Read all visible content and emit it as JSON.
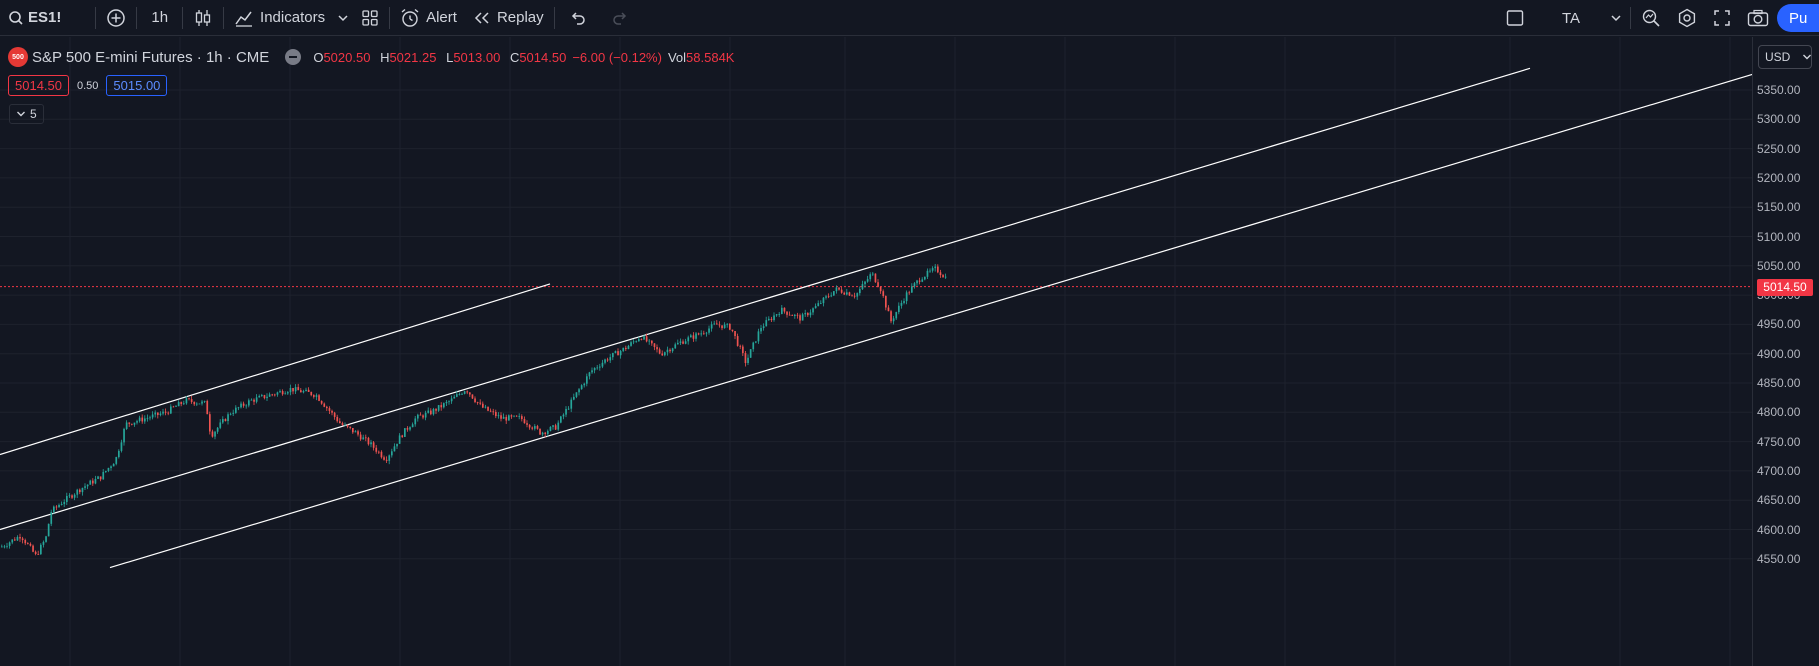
{
  "toolbar": {
    "symbol": "ES1!",
    "interval": "1h",
    "indicators_label": "Indicators",
    "alert_label": "Alert",
    "replay_label": "Replay",
    "ta_label": "TA",
    "publish_label": "Pu"
  },
  "legend": {
    "exchange_logo_text": "500",
    "title": "S&P 500 E-mini Futures · 1h · CME",
    "open_label": "O",
    "open": "5020.50",
    "high_label": "H",
    "high": "5021.25",
    "low_label": "L",
    "low": "5013.00",
    "close_label": "C",
    "close": "5014.50",
    "change": "−6.00 (−0.12%)",
    "volume_label": "Vol",
    "volume": "58.584K"
  },
  "quote": {
    "sell": "5014.50",
    "spread": "0.50",
    "buy": "5015.00"
  },
  "indicators_collapsed_count": "5",
  "axis": {
    "currency": "USD",
    "last_price": "5014.50",
    "labels": [
      "5350.00",
      "5300.00",
      "5250.00",
      "5200.00",
      "5150.00",
      "5100.00",
      "5050.00",
      "5000.00",
      "4950.00",
      "4900.00",
      "4850.00",
      "4800.00",
      "4750.00",
      "4700.00",
      "4650.00",
      "4600.00",
      "4550.00"
    ]
  },
  "colors": {
    "background": "#131722",
    "grid": "#1e222d",
    "up": "#26a69a",
    "down": "#ef5350",
    "accent": "#2962ff",
    "last_price": "#f23645",
    "channel": "#ffffff"
  },
  "chart_data": {
    "type": "candlestick",
    "symbol": "ES1!",
    "interval": "1h",
    "ylim": [
      4530,
      5390
    ],
    "last_price": 5014.5,
    "path": [
      [
        0,
        4570
      ],
      [
        20,
        4590
      ],
      [
        35,
        4555
      ],
      [
        45,
        4585
      ],
      [
        50,
        4630
      ],
      [
        60,
        4645
      ],
      [
        80,
        4670
      ],
      [
        100,
        4690
      ],
      [
        115,
        4720
      ],
      [
        125,
        4780
      ],
      [
        145,
        4790
      ],
      [
        165,
        4800
      ],
      [
        185,
        4820
      ],
      [
        205,
        4815
      ],
      [
        210,
        4760
      ],
      [
        230,
        4800
      ],
      [
        250,
        4820
      ],
      [
        270,
        4830
      ],
      [
        290,
        4840
      ],
      [
        315,
        4830
      ],
      [
        340,
        4780
      ],
      [
        355,
        4765
      ],
      [
        370,
        4745
      ],
      [
        385,
        4720
      ],
      [
        400,
        4760
      ],
      [
        415,
        4790
      ],
      [
        430,
        4800
      ],
      [
        450,
        4820
      ],
      [
        465,
        4840
      ],
      [
        480,
        4810
      ],
      [
        500,
        4790
      ],
      [
        520,
        4790
      ],
      [
        540,
        4765
      ],
      [
        555,
        4775
      ],
      [
        575,
        4830
      ],
      [
        590,
        4870
      ],
      [
        605,
        4890
      ],
      [
        625,
        4910
      ],
      [
        640,
        4930
      ],
      [
        660,
        4900
      ],
      [
        680,
        4920
      ],
      [
        700,
        4935
      ],
      [
        715,
        4950
      ],
      [
        730,
        4945
      ],
      [
        745,
        4885
      ],
      [
        760,
        4945
      ],
      [
        780,
        4975
      ],
      [
        800,
        4960
      ],
      [
        815,
        4980
      ],
      [
        835,
        5010
      ],
      [
        855,
        5000
      ],
      [
        870,
        5035
      ],
      [
        860,
        5060
      ],
      [
        870,
        5040
      ],
      [
        880,
        5010
      ],
      [
        890,
        4955
      ],
      [
        905,
        5000
      ],
      [
        920,
        5030
      ],
      [
        935,
        5045
      ],
      [
        945,
        5030
      ]
    ],
    "channel_lines": [
      {
        "p1": [
          0,
          4728
        ],
        "p2": [
          550,
          5019
        ]
      },
      {
        "p1": [
          0,
          4600
        ],
        "p2": [
          1530,
          5387
        ]
      },
      {
        "p1": [
          110,
          4535
        ],
        "p2": [
          1755,
          5378
        ]
      }
    ]
  }
}
